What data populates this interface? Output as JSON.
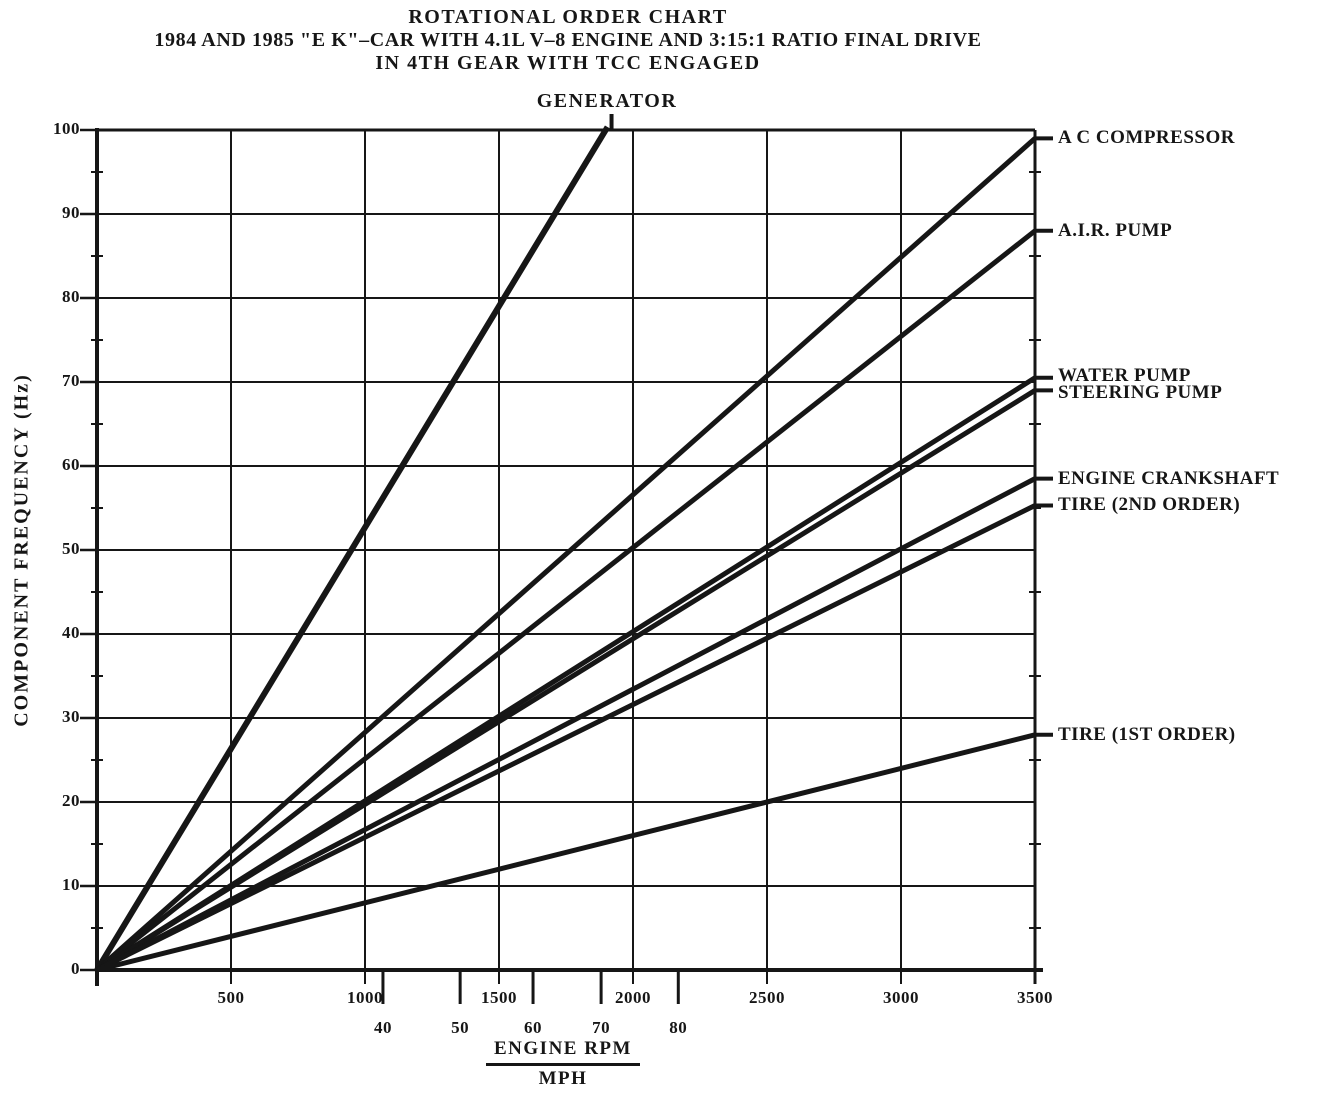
{
  "title": {
    "line1": "ROTATIONAL ORDER CHART",
    "line2": "1984 AND 1985 \"E K\"–CAR WITH 4.1L V–8 ENGINE AND 3:15:1 RATIO FINAL DRIVE",
    "line3": "IN 4TH GEAR WITH TCC ENGAGED"
  },
  "chart_data": {
    "type": "line",
    "title": "ROTATIONAL ORDER CHART",
    "ylabel": "COMPONENT FREQUENCY (Hz)",
    "xlabel_primary": "ENGINE RPM",
    "xlabel_secondary": "MPH",
    "grid": true,
    "legend_position": "labels at line ends (right margin and top)",
    "ink_color": "#161616",
    "background_color": "#ffffff",
    "x_axis": {
      "unit": "RPM",
      "min": 0,
      "max": 3500,
      "ticks": [
        500,
        1000,
        1500,
        2000,
        2500,
        3000,
        3500
      ]
    },
    "y_axis": {
      "unit": "Hz",
      "min": 0,
      "max": 100,
      "ticks": [
        0,
        10,
        20,
        30,
        40,
        50,
        60,
        70,
        80,
        90,
        100
      ],
      "minor_tick_step": 5
    },
    "mph_scale": {
      "values": [
        40,
        50,
        60,
        70,
        80
      ],
      "rpm_equivalent": [
        1067,
        1355,
        1627,
        1881,
        2169
      ]
    },
    "all_series_start_at_origin": true,
    "series": [
      {
        "name": "GENERATOR",
        "hz_per_1000_rpm": 52.5,
        "exits_top_at": {
          "rpm": 1905,
          "hz": 100
        }
      },
      {
        "name": "A C COMPRESSOR",
        "hz_per_1000_rpm": 28.3,
        "hz_at_3500_rpm": 99
      },
      {
        "name": "A.I.R. PUMP",
        "hz_per_1000_rpm": 25.1,
        "hz_at_3500_rpm": 88
      },
      {
        "name": "WATER PUMP",
        "hz_per_1000_rpm": 20.1,
        "hz_at_3500_rpm": 70.5
      },
      {
        "name": "STEERING PUMP",
        "hz_per_1000_rpm": 19.7,
        "hz_at_3500_rpm": 69
      },
      {
        "name": "ENGINE CRANKSHAFT",
        "hz_per_1000_rpm": 16.7,
        "hz_at_3500_rpm": 58.5
      },
      {
        "name": "TIRE (2ND ORDER)",
        "hz_per_1000_rpm": 15.8,
        "hz_at_3500_rpm": 55.3
      },
      {
        "name": "TIRE (1ST ORDER)",
        "hz_per_1000_rpm": 8.0,
        "hz_at_3500_rpm": 28
      }
    ]
  }
}
